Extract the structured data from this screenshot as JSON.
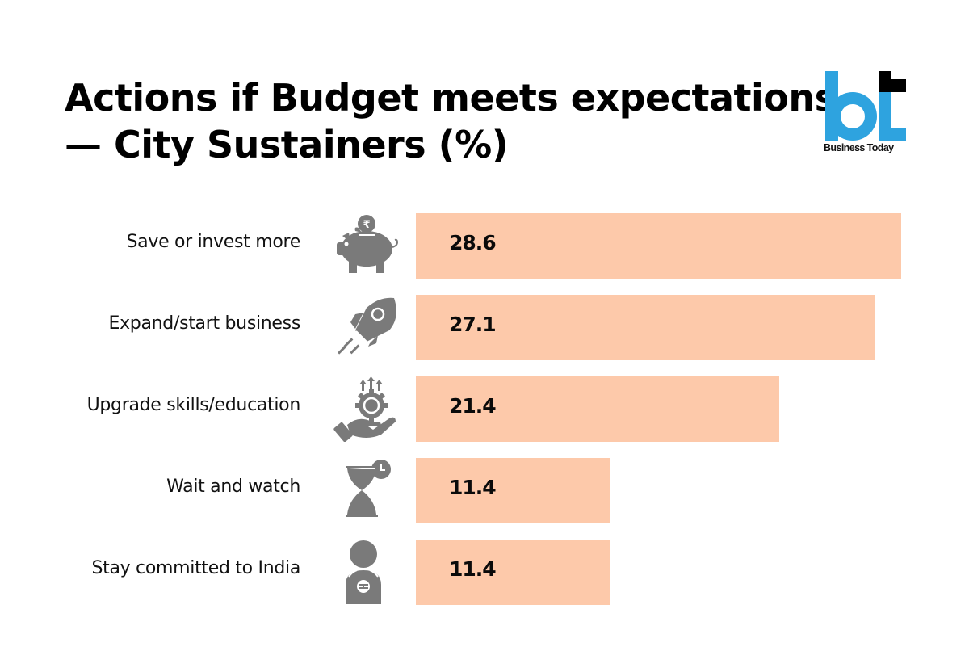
{
  "title": {
    "line1": "Actions if Budget meets expectations",
    "line2": "— City Sustainers (%)"
  },
  "brand": {
    "logo_text": "Business Today",
    "logo_mark": "bt",
    "colors": {
      "blue": "#2ea3df",
      "black": "#000000"
    }
  },
  "colors": {
    "bar": "#fdc9aa",
    "icon": "#7a7a7a",
    "text": "#000000"
  },
  "chart_data": {
    "type": "bar",
    "orientation": "horizontal",
    "title": "Actions if Budget meets expectations — City Sustainers (%)",
    "xlabel": "",
    "ylabel": "",
    "categories": [
      "Save or invest more",
      "Expand/start business",
      "Upgrade skills/education",
      "Wait and watch",
      "Stay committed to India"
    ],
    "values": [
      28.6,
      27.1,
      21.4,
      11.4,
      11.4
    ],
    "value_labels": [
      "28.6",
      "27.1",
      "21.4",
      "11.4",
      "11.4"
    ],
    "icons": [
      "piggy-bank-icon",
      "rocket-icon",
      "hand-gear-growth-icon",
      "hourglass-clock-icon",
      "person-badge-icon"
    ],
    "xlim": [
      0,
      28.6
    ],
    "grid": false,
    "legend": "none"
  }
}
